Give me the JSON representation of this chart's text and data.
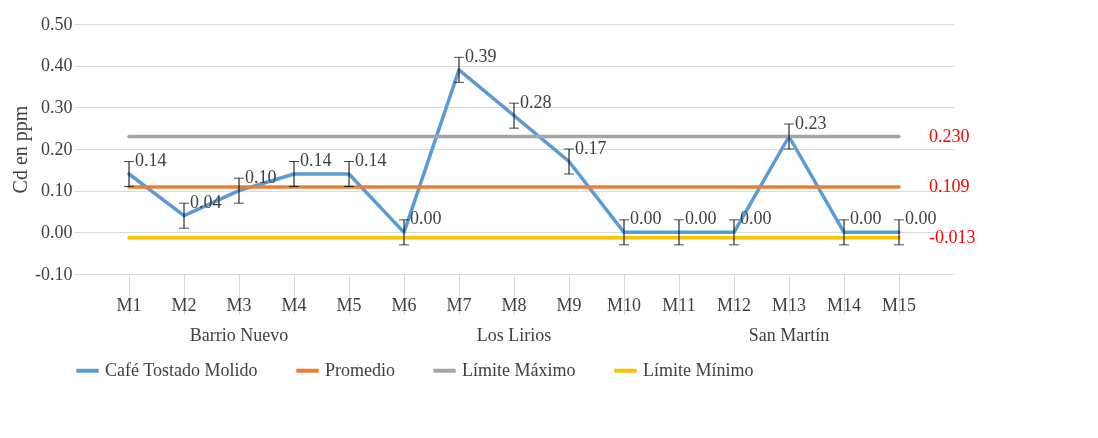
{
  "chart_data": {
    "type": "line",
    "ylabel": "Cd en ppm",
    "categories": [
      "M1",
      "M2",
      "M3",
      "M4",
      "M5",
      "M6",
      "M7",
      "M8",
      "M9",
      "M10",
      "M11",
      "M12",
      "M13",
      "M14",
      "M15"
    ],
    "series": [
      {
        "name": "Café Tostado Molido",
        "color": "#5b9bd5",
        "values": [
          0.14,
          0.04,
          0.1,
          0.14,
          0.14,
          0.0,
          0.39,
          0.28,
          0.17,
          0.0,
          0.0,
          0.0,
          0.23,
          0.0,
          0.0
        ],
        "errors": [
          0.03,
          0.03,
          0.03,
          0.03,
          0.03,
          0.03,
          0.03,
          0.03,
          0.03,
          0.03,
          0.03,
          0.03,
          0.03,
          0.03,
          0.03
        ],
        "value_labels": [
          "0.14",
          "0.04",
          "0.10",
          "0.14",
          "0.14",
          "0.00",
          "0.39",
          "0.28",
          "0.17",
          "0.00",
          "0.00",
          "0.00",
          "0.23",
          "0.00",
          "0.00"
        ]
      },
      {
        "name": "Promedio",
        "color": "#ed7d31",
        "values": [
          0.109,
          0.109,
          0.109,
          0.109,
          0.109,
          0.109,
          0.109,
          0.109,
          0.109,
          0.109,
          0.109,
          0.109,
          0.109,
          0.109,
          0.109
        ],
        "value_labels": [
          null,
          null,
          null,
          null,
          null,
          null,
          null,
          null,
          null,
          null,
          null,
          null,
          null,
          null,
          "0.109"
        ]
      },
      {
        "name": "Límite Máximo",
        "color": "#a5a5a5",
        "values": [
          0.23,
          0.23,
          0.23,
          0.23,
          0.23,
          0.23,
          0.23,
          0.23,
          0.23,
          0.23,
          0.23,
          0.23,
          0.23,
          0.23,
          0.23
        ],
        "value_labels": [
          null,
          null,
          null,
          null,
          null,
          null,
          null,
          null,
          null,
          null,
          null,
          null,
          null,
          null,
          "0.230"
        ]
      },
      {
        "name": "Límite Mínimo",
        "color": "#ffc000",
        "values": [
          -0.013,
          -0.013,
          -0.013,
          -0.013,
          -0.013,
          -0.013,
          -0.013,
          -0.013,
          -0.013,
          -0.013,
          -0.013,
          -0.013,
          -0.013,
          -0.013,
          -0.013
        ],
        "value_labels": [
          null,
          null,
          null,
          null,
          null,
          null,
          null,
          null,
          null,
          null,
          null,
          null,
          null,
          null,
          "-0.013"
        ]
      }
    ],
    "ylim": [
      -0.1,
      0.5
    ],
    "yticks": [
      {
        "value": -0.1,
        "label": "-0.10"
      },
      {
        "value": 0,
        "label": "0.00"
      },
      {
        "value": 0.1,
        "label": "0.10"
      },
      {
        "value": 0.2,
        "label": "0.20"
      },
      {
        "value": 0.3,
        "label": "0.30"
      },
      {
        "value": 0.4,
        "label": "0.40"
      },
      {
        "value": 0.5,
        "label": "0.50"
      }
    ],
    "annotations": [
      {
        "text": "Barrio Nuevo",
        "x": "M3"
      },
      {
        "text": "Los Lirios",
        "x": "M8"
      },
      {
        "text": "San Martín",
        "x": "M13"
      }
    ],
    "grid": "y",
    "legend": "bottom",
    "marker": "none",
    "line_style": "solid"
  }
}
